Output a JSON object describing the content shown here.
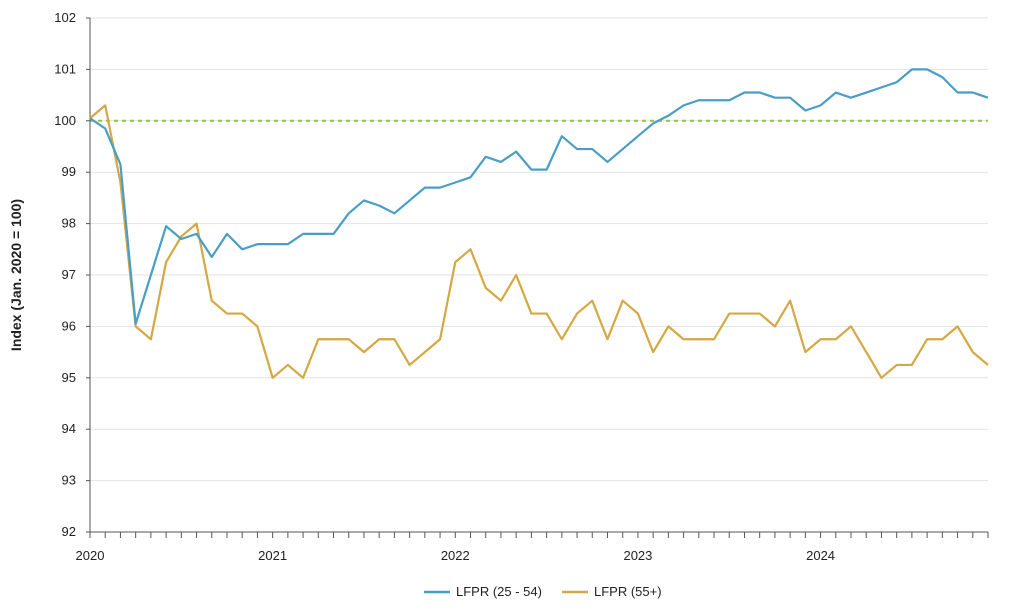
{
  "chart_data": {
    "type": "line",
    "title": "",
    "xlabel": "",
    "ylabel": "Index (Jan. 2020 = 100)",
    "ylim": [
      92,
      102
    ],
    "yticks": [
      92,
      93,
      94,
      95,
      96,
      97,
      98,
      99,
      100,
      101,
      102
    ],
    "x_start": "2020-01",
    "xticks": [
      {
        "label": "2020",
        "month_index": 0
      },
      {
        "label": "2021",
        "month_index": 12
      },
      {
        "label": "2022",
        "month_index": 24
      },
      {
        "label": "2023",
        "month_index": 36
      },
      {
        "label": "2024",
        "month_index": 48
      }
    ],
    "grid": true,
    "legend_position": "bottom",
    "reference_line": {
      "y": 100,
      "color": "#8dc63f"
    },
    "series": [
      {
        "name": "LFPR (25 - 54)",
        "color": "#4a9ec6",
        "values": [
          100.05,
          99.85,
          99.15,
          96.05,
          97.0,
          97.95,
          97.7,
          97.8,
          97.35,
          97.8,
          97.5,
          97.6,
          97.6,
          97.6,
          97.8,
          97.8,
          97.8,
          98.2,
          98.45,
          98.35,
          98.2,
          98.45,
          98.7,
          98.7,
          98.8,
          98.9,
          99.3,
          99.2,
          99.4,
          99.05,
          99.05,
          99.7,
          99.45,
          99.45,
          99.2,
          99.45,
          99.7,
          99.95,
          100.1,
          100.3,
          100.4,
          100.4,
          100.4,
          100.55,
          100.55,
          100.45,
          100.45,
          100.2,
          100.3,
          100.55,
          100.45,
          100.55,
          100.65,
          100.75,
          101.0,
          101.0,
          100.85,
          100.55,
          100.55,
          100.45
        ]
      },
      {
        "name": "LFPR (55+)",
        "color": "#d4a842",
        "values": [
          100.05,
          100.3,
          98.8,
          96.0,
          95.75,
          97.25,
          97.75,
          98.0,
          96.5,
          96.25,
          96.25,
          96.0,
          95.0,
          95.25,
          95.0,
          95.75,
          95.75,
          95.75,
          95.5,
          95.75,
          95.75,
          95.25,
          95.5,
          95.75,
          97.25,
          97.5,
          96.75,
          96.5,
          97.0,
          96.25,
          96.25,
          95.75,
          96.25,
          96.5,
          95.75,
          96.5,
          96.25,
          95.5,
          96.0,
          95.75,
          95.75,
          95.75,
          96.25,
          96.25,
          96.25,
          96.0,
          96.5,
          95.5,
          95.75,
          95.75,
          96.0,
          95.5,
          95.0,
          95.25,
          95.25,
          95.75,
          95.75,
          96.0,
          95.5,
          95.25
        ]
      }
    ]
  }
}
